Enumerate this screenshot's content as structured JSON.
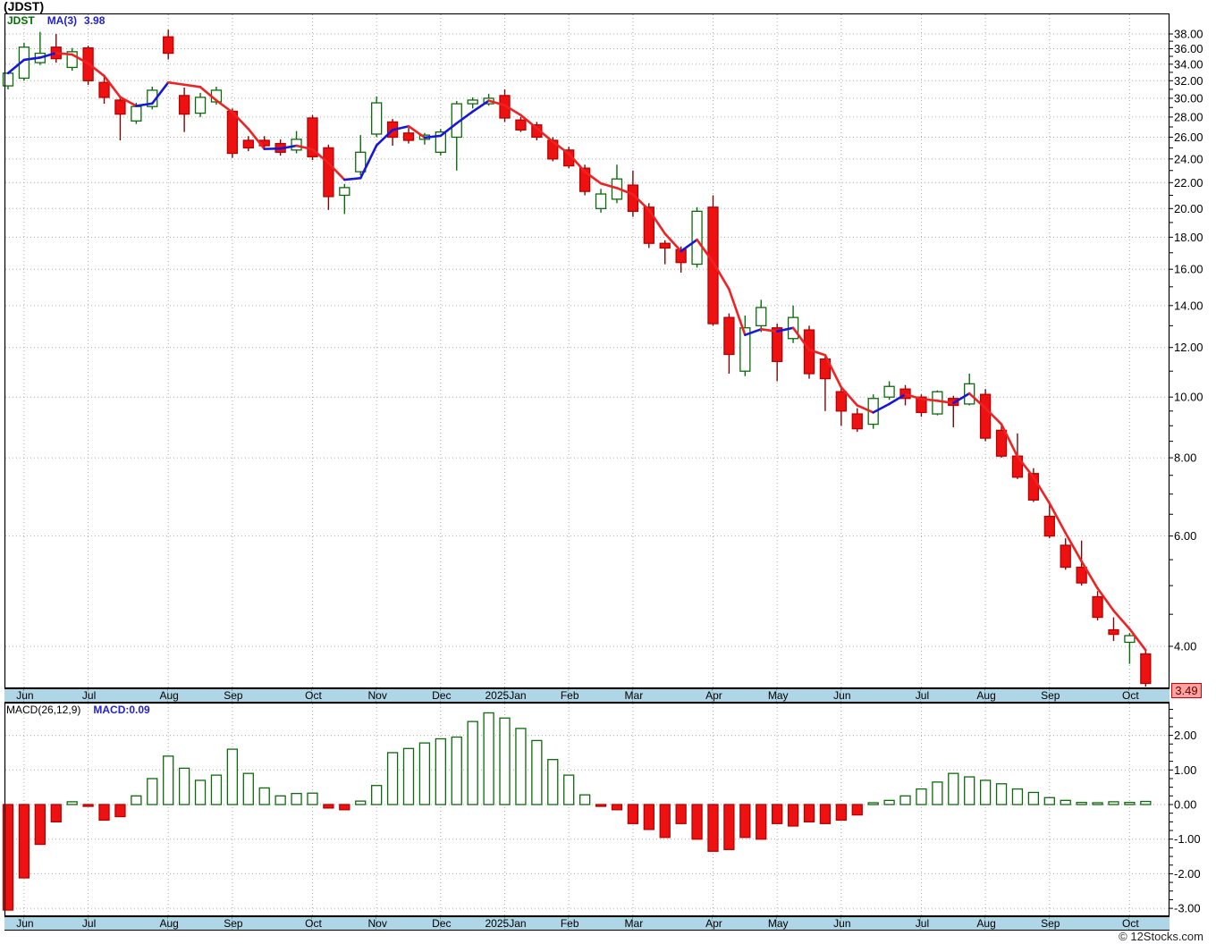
{
  "header": {
    "title": "(JDST)"
  },
  "main_chart": {
    "legend": {
      "symbol": "JDST",
      "ma_label": "MA(3)",
      "ma_value": "3.98"
    },
    "y_axis_labels": [
      "38.00",
      "36.00",
      "34.00",
      "32.00",
      "30.00",
      "28.00",
      "26.00",
      "24.00",
      "22.00",
      "20.00",
      "18.00",
      "16.00",
      "14.00",
      "12.00",
      "10.00",
      "8.00",
      "6.00",
      "4.00"
    ],
    "last_price": "3.49"
  },
  "macd_chart": {
    "legend_left": "MACD(26,12,9)",
    "legend_right": "MACD:0.09",
    "y_axis_labels": [
      "2.00",
      "1.00",
      "0.00",
      "-1.00",
      "-2.00",
      "-3.00"
    ]
  },
  "months": [
    {
      "label": "Jun",
      "week": 1
    },
    {
      "label": "Jul",
      "week": 5
    },
    {
      "label": "Aug",
      "week": 10
    },
    {
      "label": "Sep",
      "week": 14
    },
    {
      "label": "Oct",
      "week": 19
    },
    {
      "label": "Nov",
      "week": 23
    },
    {
      "label": "Dec",
      "week": 27
    },
    {
      "label": "2025Jan",
      "week": 31
    },
    {
      "label": "Feb",
      "week": 35
    },
    {
      "label": "Mar",
      "week": 39
    },
    {
      "label": "Apr",
      "week": 44
    },
    {
      "label": "May",
      "week": 48
    },
    {
      "label": "Jun",
      "week": 52
    },
    {
      "label": "Jul",
      "week": 57
    },
    {
      "label": "Aug",
      "week": 61
    },
    {
      "label": "Sep",
      "week": 65
    },
    {
      "label": "Oct",
      "week": 70
    }
  ],
  "watermark": "© 12Stocks.com",
  "colors": {
    "up_stroke": "#0b6b0b",
    "up_fill": "#ffffff",
    "down_fill": "#ee1111",
    "down_stroke": "#bb0000",
    "down_wick": "#7a0808",
    "ma_up": "#1616dd",
    "ma_down": "#ee2222",
    "grid": "#aaaaaa",
    "band_bg": "#aed6e6",
    "last_price_bg": "#ffa2a2",
    "last_price_border": "#d40000"
  },
  "chart_data": [
    {
      "type": "candlestick",
      "title": "JDST weekly price",
      "x_unit": "week",
      "y_scale": "log",
      "ylim": [
        3.3,
        39.5
      ],
      "y_ticks": [
        38,
        36,
        34,
        32,
        30,
        28,
        26,
        24,
        22,
        20,
        18,
        16,
        14,
        12,
        10,
        8,
        6,
        4
      ],
      "legend": [
        "JDST",
        "MA(3) 3.98"
      ],
      "last_close": 3.49,
      "ohlc": [
        [
          31.4,
          33.0,
          31.0,
          32.9
        ],
        [
          32.3,
          36.8,
          32.0,
          36.2
        ],
        [
          34.2,
          38.3,
          33.9,
          35.4
        ],
        [
          36.2,
          38.0,
          34.2,
          34.7
        ],
        [
          33.6,
          36.1,
          33.2,
          35.6
        ],
        [
          36.1,
          36.4,
          31.5,
          32.0
        ],
        [
          31.8,
          32.5,
          29.4,
          30.1
        ],
        [
          29.8,
          30.2,
          25.7,
          28.3
        ],
        [
          27.6,
          29.5,
          27.3,
          29.1
        ],
        [
          29.1,
          31.3,
          28.8,
          30.9
        ],
        [
          37.6,
          38.6,
          34.6,
          35.4
        ],
        [
          30.3,
          31.2,
          26.5,
          28.3
        ],
        [
          28.4,
          30.6,
          28.0,
          30.1
        ],
        [
          29.6,
          31.3,
          29.3,
          30.9
        ],
        [
          28.6,
          28.9,
          24.1,
          24.5
        ],
        [
          25.7,
          26.1,
          24.7,
          25.0
        ],
        [
          25.7,
          26.1,
          24.9,
          25.2
        ],
        [
          25.4,
          25.8,
          24.3,
          24.6
        ],
        [
          24.8,
          26.6,
          24.5,
          25.8
        ],
        [
          27.9,
          28.2,
          23.9,
          24.2
        ],
        [
          25.0,
          25.3,
          19.9,
          20.9
        ],
        [
          21.0,
          21.9,
          19.6,
          21.6
        ],
        [
          22.9,
          26.2,
          22.6,
          24.6
        ],
        [
          26.3,
          30.2,
          26.0,
          29.5
        ],
        [
          27.5,
          27.8,
          25.2,
          26.0
        ],
        [
          26.4,
          26.9,
          25.4,
          25.7
        ],
        [
          25.8,
          26.4,
          25.3,
          26.2
        ],
        [
          24.6,
          26.8,
          24.3,
          26.5
        ],
        [
          26.0,
          29.7,
          23.0,
          29.4
        ],
        [
          29.4,
          30.1,
          28.9,
          29.8
        ],
        [
          29.4,
          30.5,
          29.2,
          30.0
        ],
        [
          30.3,
          31.0,
          27.5,
          27.9
        ],
        [
          27.7,
          28.0,
          26.5,
          26.7
        ],
        [
          27.2,
          27.5,
          25.7,
          26.0
        ],
        [
          25.7,
          26.0,
          23.8,
          24.0
        ],
        [
          24.8,
          25.1,
          23.2,
          23.4
        ],
        [
          23.2,
          23.5,
          21.0,
          21.3
        ],
        [
          20.0,
          21.5,
          19.7,
          21.1
        ],
        [
          20.7,
          23.5,
          20.4,
          22.3
        ],
        [
          21.8,
          23.0,
          19.4,
          19.8
        ],
        [
          20.1,
          20.4,
          17.3,
          17.6
        ],
        [
          17.6,
          17.8,
          16.3,
          17.3
        ],
        [
          17.2,
          17.4,
          15.8,
          16.4
        ],
        [
          16.3,
          20.1,
          16.1,
          19.8
        ],
        [
          20.1,
          21.0,
          13.0,
          13.1
        ],
        [
          13.4,
          13.6,
          10.9,
          11.7
        ],
        [
          11.0,
          13.5,
          10.8,
          12.9
        ],
        [
          13.0,
          14.3,
          12.7,
          13.9
        ],
        [
          12.9,
          13.1,
          10.6,
          11.4
        ],
        [
          12.4,
          14.0,
          12.2,
          13.4
        ],
        [
          12.8,
          13.0,
          10.7,
          10.9
        ],
        [
          11.5,
          11.6,
          9.5,
          10.7
        ],
        [
          10.2,
          10.4,
          9.0,
          9.5
        ],
        [
          9.4,
          9.6,
          8.8,
          8.9
        ],
        [
          9.05,
          10.1,
          8.9,
          9.95
        ],
        [
          10.0,
          10.6,
          9.9,
          10.4
        ],
        [
          10.3,
          10.45,
          9.7,
          9.95
        ],
        [
          10.0,
          10.1,
          9.3,
          9.45
        ],
        [
          9.4,
          10.25,
          9.35,
          10.2
        ],
        [
          9.95,
          10.05,
          8.95,
          9.7
        ],
        [
          9.75,
          10.9,
          9.7,
          10.5
        ],
        [
          10.1,
          10.3,
          8.5,
          8.6
        ],
        [
          8.85,
          9.0,
          8.0,
          8.05
        ],
        [
          8.05,
          8.75,
          7.4,
          7.45
        ],
        [
          7.55,
          7.7,
          6.8,
          6.85
        ],
        [
          6.45,
          6.75,
          5.95,
          6.0
        ],
        [
          5.8,
          5.95,
          5.3,
          5.35
        ],
        [
          5.35,
          5.9,
          5.0,
          5.05
        ],
        [
          4.8,
          4.9,
          4.4,
          4.45
        ],
        [
          4.25,
          4.45,
          4.08,
          4.18
        ],
        [
          4.06,
          4.2,
          3.75,
          4.16
        ],
        [
          3.89,
          3.95,
          3.45,
          3.49
        ]
      ],
      "overlay": {
        "name": "MA(3)",
        "derived": "3-week moving average of close, blue when rising, red when falling",
        "last_value": 3.98
      }
    },
    {
      "type": "bar",
      "title": "MACD(26,12,9) histogram",
      "ylim": [
        -3.4,
        2.9
      ],
      "y_ticks": [
        2,
        1,
        0,
        -1,
        -2,
        -3
      ],
      "last_value": 0.09,
      "values": [
        -3.05,
        -2.12,
        -1.15,
        -0.5,
        0.08,
        -0.03,
        -0.45,
        -0.35,
        0.25,
        0.75,
        1.4,
        1.05,
        0.7,
        0.85,
        1.6,
        0.9,
        0.48,
        0.25,
        0.32,
        0.33,
        -0.1,
        -0.15,
        0.1,
        0.55,
        1.5,
        1.62,
        1.78,
        1.9,
        1.95,
        2.4,
        2.65,
        2.5,
        2.2,
        1.85,
        1.3,
        0.85,
        0.28,
        -0.05,
        -0.15,
        -0.55,
        -0.72,
        -0.95,
        -0.55,
        -1.0,
        -1.35,
        -1.3,
        -0.95,
        -1.0,
        -0.55,
        -0.62,
        -0.5,
        -0.55,
        -0.45,
        -0.3,
        0.03,
        0.12,
        0.25,
        0.45,
        0.65,
        0.9,
        0.8,
        0.7,
        0.6,
        0.45,
        0.35,
        0.2,
        0.12,
        0.06,
        0.04,
        0.08,
        0.06,
        0.09
      ]
    }
  ]
}
